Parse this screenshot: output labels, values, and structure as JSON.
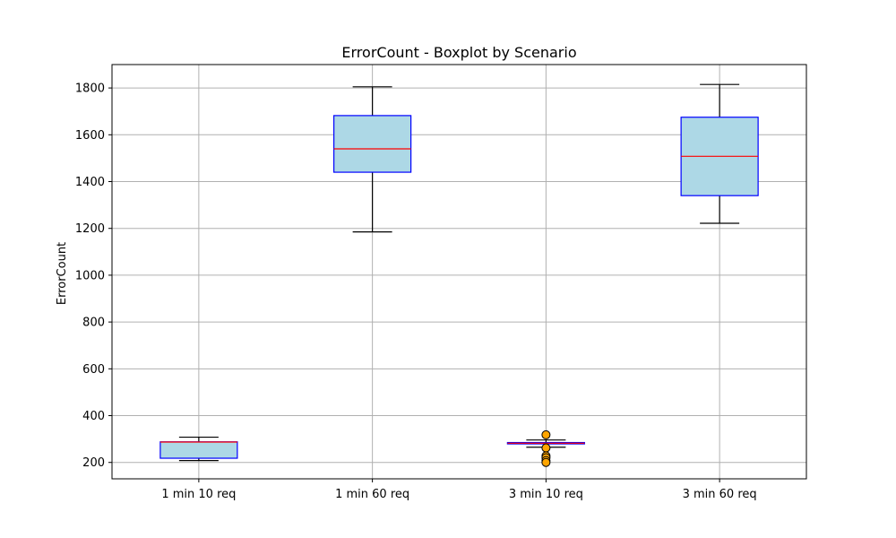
{
  "chart_data": {
    "type": "boxplot",
    "title": "ErrorCount - Boxplot by Scenario",
    "xlabel": "",
    "ylabel": "ErrorCount",
    "ylim": [
      130,
      1900
    ],
    "yticks": [
      200,
      400,
      600,
      800,
      1000,
      1200,
      1400,
      1600,
      1800
    ],
    "grid": true,
    "categories": [
      "1 min 10 req",
      "1 min 60 req",
      "3 min 10 req",
      "3 min 60 req"
    ],
    "boxes": [
      {
        "whisker_low": 208,
        "q1": 218,
        "median": 287,
        "q3": 288,
        "whisker_high": 308,
        "outliers": []
      },
      {
        "whisker_low": 1185,
        "q1": 1440,
        "median": 1540,
        "q3": 1682,
        "whisker_high": 1805,
        "outliers": []
      },
      {
        "whisker_low": 265,
        "q1": 280,
        "median": 282,
        "q3": 285,
        "whisker_high": 296,
        "outliers": [
          318,
          262,
          228,
          220,
          208,
          200
        ]
      },
      {
        "whisker_low": 1222,
        "q1": 1340,
        "median": 1508,
        "q3": 1675,
        "whisker_high": 1815,
        "outliers": []
      }
    ],
    "colors": {
      "box_fill": "#add8e6",
      "box_edge": "#0000ff",
      "median": "#ff0000",
      "whisker": "#000000",
      "outlier_fill": "#ffa500",
      "grid": "#b0b0b0"
    }
  }
}
